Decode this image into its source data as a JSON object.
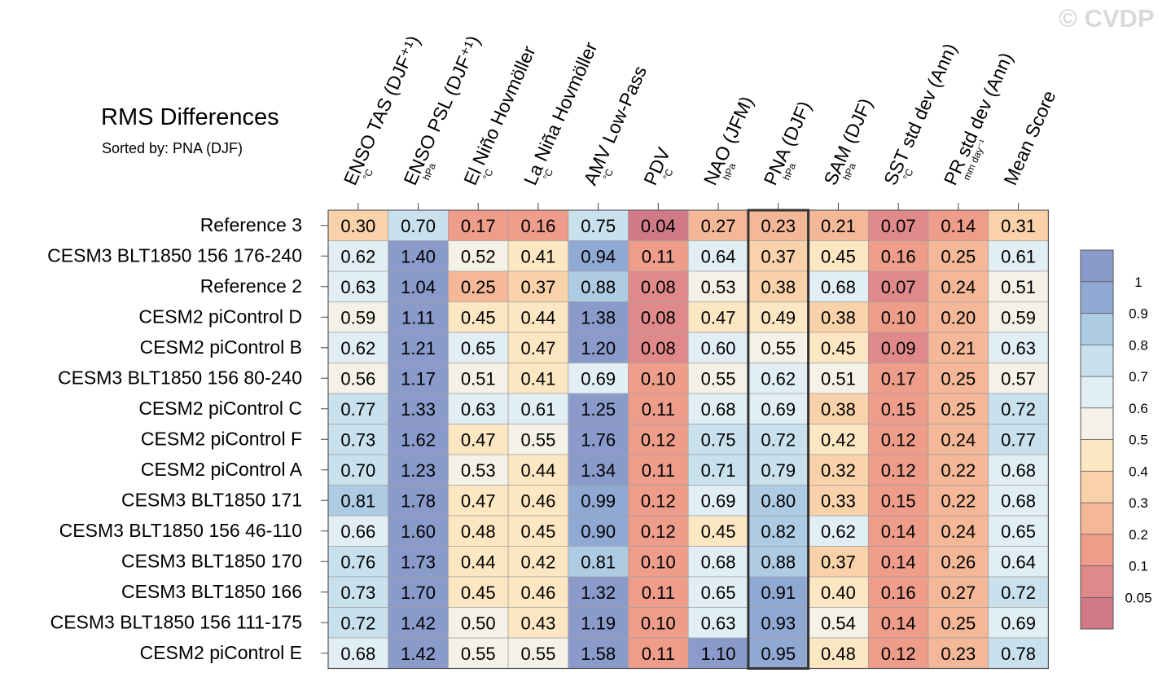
{
  "watermark": "© CVDP",
  "chart_data": {
    "type": "heatmap",
    "title": "RMS Differences",
    "subtitle": "Sorted by: PNA (DJF)",
    "highlighted_column": "PNA (DJF)",
    "columns": [
      {
        "label": "ENSO TAS (DJF⁺¹)",
        "unit": "°C"
      },
      {
        "label": "ENSO PSL (DJF⁺¹)",
        "unit": "hPa"
      },
      {
        "label": "El Niño Hovmöller",
        "unit": "°C"
      },
      {
        "label": "La Niña Hovmöller",
        "unit": "°C"
      },
      {
        "label": "AMV Low-Pass",
        "unit": "°C"
      },
      {
        "label": "PDV",
        "unit": "°C"
      },
      {
        "label": "NAO (JFM)",
        "unit": "hPa"
      },
      {
        "label": "PNA (DJF)",
        "unit": "hPa"
      },
      {
        "label": "SAM (DJF)",
        "unit": "hPa"
      },
      {
        "label": "SST std dev (Ann)",
        "unit": "°C"
      },
      {
        "label": "PR std dev (Ann)",
        "unit": "mm day⁻¹"
      },
      {
        "label": "Mean Score",
        "unit": ""
      }
    ],
    "rows": [
      "Reference 3",
      "CESM3 BLT1850 156 176-240",
      "Reference 2",
      "CESM2 piControl D",
      "CESM2 piControl B",
      "CESM3 BLT1850 156 80-240",
      "CESM2 piControl C",
      "CESM2 piControl F",
      "CESM2 piControl A",
      "CESM3 BLT1850 171",
      "CESM3 BLT1850 156 46-110",
      "CESM3 BLT1850 170",
      "CESM3 BLT1850 166",
      "CESM3 BLT1850 156 111-175",
      "CESM2 piControl E"
    ],
    "values": [
      [
        "0.30",
        "0.70",
        "0.17",
        "0.16",
        "0.75",
        "0.04",
        "0.27",
        "0.23",
        "0.21",
        "0.07",
        "0.14",
        "0.31"
      ],
      [
        "0.62",
        "1.40",
        "0.52",
        "0.41",
        "0.94",
        "0.11",
        "0.64",
        "0.37",
        "0.45",
        "0.16",
        "0.25",
        "0.61"
      ],
      [
        "0.63",
        "1.04",
        "0.25",
        "0.37",
        "0.88",
        "0.08",
        "0.53",
        "0.38",
        "0.68",
        "0.07",
        "0.24",
        "0.51"
      ],
      [
        "0.59",
        "1.11",
        "0.45",
        "0.44",
        "1.38",
        "0.08",
        "0.47",
        "0.49",
        "0.38",
        "0.10",
        "0.20",
        "0.59"
      ],
      [
        "0.62",
        "1.21",
        "0.65",
        "0.47",
        "1.20",
        "0.08",
        "0.60",
        "0.55",
        "0.45",
        "0.09",
        "0.21",
        "0.63"
      ],
      [
        "0.56",
        "1.17",
        "0.51",
        "0.41",
        "0.69",
        "0.10",
        "0.55",
        "0.62",
        "0.51",
        "0.17",
        "0.25",
        "0.57"
      ],
      [
        "0.77",
        "1.33",
        "0.63",
        "0.61",
        "1.25",
        "0.11",
        "0.68",
        "0.69",
        "0.38",
        "0.15",
        "0.25",
        "0.72"
      ],
      [
        "0.73",
        "1.62",
        "0.47",
        "0.55",
        "1.76",
        "0.12",
        "0.75",
        "0.72",
        "0.42",
        "0.12",
        "0.24",
        "0.77"
      ],
      [
        "0.70",
        "1.23",
        "0.53",
        "0.44",
        "1.34",
        "0.11",
        "0.71",
        "0.79",
        "0.32",
        "0.12",
        "0.22",
        "0.68"
      ],
      [
        "0.81",
        "1.78",
        "0.47",
        "0.46",
        "0.99",
        "0.12",
        "0.69",
        "0.80",
        "0.33",
        "0.15",
        "0.22",
        "0.68"
      ],
      [
        "0.66",
        "1.60",
        "0.48",
        "0.45",
        "0.90",
        "0.12",
        "0.45",
        "0.82",
        "0.62",
        "0.14",
        "0.24",
        "0.65"
      ],
      [
        "0.76",
        "1.73",
        "0.44",
        "0.42",
        "0.81",
        "0.10",
        "0.68",
        "0.88",
        "0.37",
        "0.14",
        "0.26",
        "0.64"
      ],
      [
        "0.73",
        "1.70",
        "0.45",
        "0.46",
        "1.32",
        "0.11",
        "0.65",
        "0.91",
        "0.40",
        "0.16",
        "0.27",
        "0.72"
      ],
      [
        "0.72",
        "1.42",
        "0.50",
        "0.43",
        "1.19",
        "0.10",
        "0.63",
        "0.93",
        "0.54",
        "0.14",
        "0.25",
        "0.69"
      ],
      [
        "0.68",
        "1.42",
        "0.55",
        "0.55",
        "1.58",
        "0.11",
        "1.10",
        "0.95",
        "0.48",
        "0.12",
        "0.23",
        "0.78"
      ]
    ],
    "colorbar": {
      "levels": [
        "0.05",
        "0.1",
        "0.2",
        "0.3",
        "0.4",
        "0.5",
        "0.6",
        "0.7",
        "0.8",
        "0.9",
        "1"
      ],
      "colors": [
        "#d07a88",
        "#e0898a",
        "#ed9d8a",
        "#f4b898",
        "#f9d2aa",
        "#fde6c2",
        "#f4f2e6",
        "#e1eef4",
        "#c9e1ed",
        "#adcbe2",
        "#90a9d2",
        "#8a9bcb"
      ]
    }
  }
}
